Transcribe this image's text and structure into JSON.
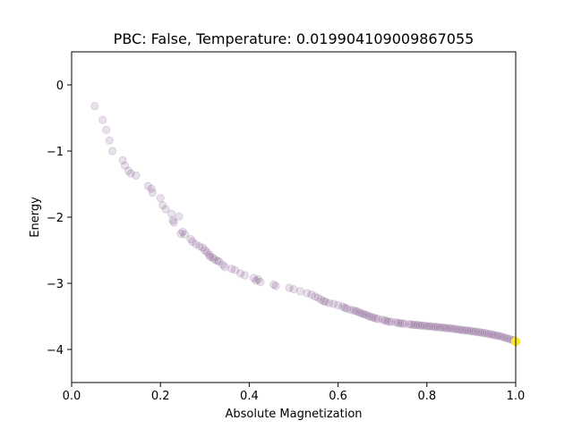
{
  "chart_data": {
    "type": "scatter",
    "title": "PBC: False, Temperature: 0.019904109009867055",
    "xlabel": "Absolute Magnetization",
    "ylabel": "Energy",
    "xlim": [
      0.0,
      1.0
    ],
    "ylim": [
      -4.5,
      0.5
    ],
    "x_ticks": [
      "0.0",
      "0.2",
      "0.4",
      "0.6",
      "0.8",
      "1.0"
    ],
    "y_ticks": [
      "0",
      "−1",
      "−2",
      "−3",
      "−4"
    ],
    "grid": false,
    "legend": "none",
    "colormap": "viridis",
    "point_color_low": "#440154",
    "point_color_final": "#fde725",
    "point_alpha": 0.12,
    "series": [
      {
        "x": [
          0.052,
          0.07,
          0.078,
          0.085,
          0.092,
          0.115,
          0.12,
          0.128,
          0.133,
          0.145,
          0.172,
          0.18,
          0.182,
          0.2,
          0.205,
          0.212,
          0.225,
          0.228,
          0.23,
          0.242,
          0.246,
          0.25,
          0.255,
          0.268,
          0.272,
          0.28,
          0.288,
          0.295,
          0.3,
          0.305,
          0.31,
          0.312,
          0.318,
          0.322,
          0.328,
          0.332,
          0.34,
          0.345,
          0.36,
          0.368,
          0.38,
          0.39,
          0.41,
          0.415,
          0.42,
          0.425,
          0.455,
          0.46,
          0.49,
          0.5,
          0.515,
          0.53,
          0.54,
          0.548,
          0.555,
          0.562,
          0.568,
          0.572,
          0.58,
          0.59,
          0.6,
          0.61,
          0.615,
          0.62,
          0.628,
          0.635,
          0.64,
          0.645,
          0.65,
          0.655,
          0.66,
          0.665,
          0.67,
          0.675,
          0.68,
          0.685,
          0.69,
          0.7,
          0.705,
          0.71,
          0.715,
          0.72,
          0.73,
          0.735,
          0.74,
          0.745,
          0.75,
          0.76,
          0.765,
          0.77,
          0.775,
          0.78,
          0.785,
          0.79,
          0.795,
          0.8,
          0.805,
          0.81,
          0.815,
          0.82,
          0.825,
          0.83,
          0.835,
          0.84,
          0.845,
          0.85,
          0.855,
          0.86,
          0.865,
          0.87,
          0.875,
          0.88,
          0.885,
          0.89,
          0.895,
          0.9,
          0.905,
          0.91,
          0.915,
          0.92,
          0.925,
          0.93,
          0.935,
          0.94,
          0.945,
          0.95,
          0.955,
          0.96,
          0.965,
          0.97,
          0.975,
          0.98,
          0.985,
          0.99,
          0.995,
          1.0
        ],
        "y": [
          -0.32,
          -0.53,
          -0.68,
          -0.84,
          -1.0,
          -1.14,
          -1.22,
          -1.3,
          -1.34,
          -1.37,
          -1.53,
          -1.57,
          -1.63,
          -1.71,
          -1.82,
          -1.88,
          -1.95,
          -2.05,
          -2.08,
          -1.99,
          -2.25,
          -2.22,
          -2.26,
          -2.33,
          -2.37,
          -2.41,
          -2.44,
          -2.46,
          -2.5,
          -2.53,
          -2.57,
          -2.6,
          -2.61,
          -2.64,
          -2.66,
          -2.67,
          -2.72,
          -2.75,
          -2.78,
          -2.8,
          -2.85,
          -2.88,
          -2.92,
          -2.96,
          -2.94,
          -2.98,
          -3.02,
          -3.04,
          -3.07,
          -3.09,
          -3.12,
          -3.15,
          -3.17,
          -3.2,
          -3.22,
          -3.25,
          -3.27,
          -3.28,
          -3.3,
          -3.31,
          -3.33,
          -3.35,
          -3.37,
          -3.38,
          -3.4,
          -3.41,
          -3.42,
          -3.43,
          -3.45,
          -3.46,
          -3.47,
          -3.48,
          -3.5,
          -3.51,
          -3.52,
          -3.53,
          -3.54,
          -3.55,
          -3.56,
          -3.57,
          -3.58,
          -3.58,
          -3.59,
          -3.6,
          -3.6,
          -3.61,
          -3.61,
          -3.62,
          -3.62,
          -3.63,
          -3.63,
          -3.63,
          -3.64,
          -3.64,
          -3.64,
          -3.65,
          -3.65,
          -3.65,
          -3.66,
          -3.66,
          -3.66,
          -3.67,
          -3.67,
          -3.67,
          -3.68,
          -3.68,
          -3.68,
          -3.69,
          -3.69,
          -3.7,
          -3.7,
          -3.71,
          -3.71,
          -3.71,
          -3.72,
          -3.72,
          -3.73,
          -3.73,
          -3.74,
          -3.74,
          -3.75,
          -3.75,
          -3.76,
          -3.77,
          -3.77,
          -3.78,
          -3.79,
          -3.79,
          -3.8,
          -3.81,
          -3.82,
          -3.83,
          -3.84,
          -3.85,
          -3.86,
          -3.88
        ]
      }
    ]
  }
}
